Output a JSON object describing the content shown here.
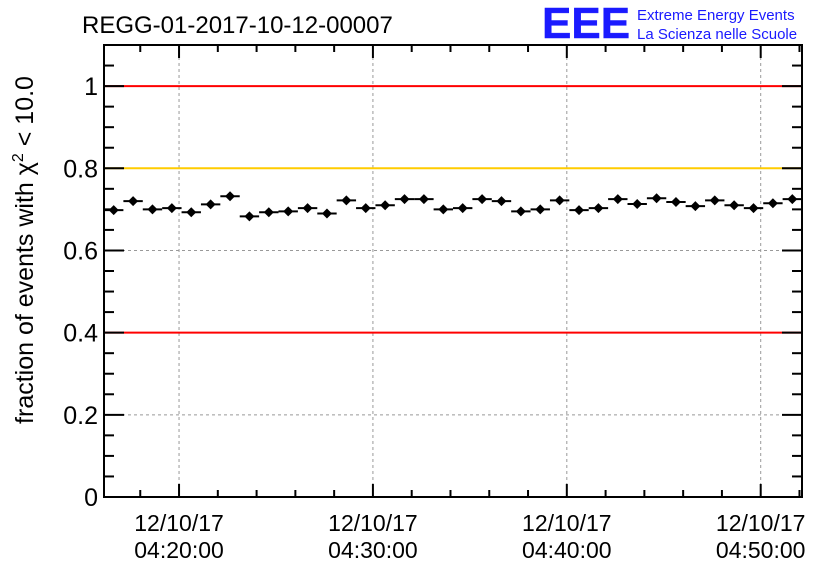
{
  "chart_data": {
    "type": "scatter",
    "title": "REGG-01-2017-10-12-00007",
    "logo": {
      "text": "EEE",
      "line1": "Extreme Energy Events",
      "line2": "La Scienza nelle Scuole"
    },
    "ylabel": "fraction of events with χ² < 10.0",
    "ylabel_parts": {
      "pre": "fraction of events with ",
      "sym": "χ",
      "sup": "2",
      "post": " < 10.0"
    },
    "xlabel": "",
    "x_units": "minutes after 04:00:00 on 12/10/17",
    "xlim": [
      16.13,
      52.13
    ],
    "ylim": [
      0,
      1.1
    ],
    "yticks": [
      0,
      0.2,
      0.4,
      0.6,
      0.8,
      1
    ],
    "ytick_labels": [
      "0",
      "0.2",
      "0.4",
      "0.6",
      "0.8",
      "1"
    ],
    "xticks": [
      20,
      30,
      40,
      50
    ],
    "xtick_labels": [
      [
        "12/10/17",
        "04:20:00"
      ],
      [
        "12/10/17",
        "04:30:00"
      ],
      [
        "12/10/17",
        "04:40:00"
      ],
      [
        "12/10/17",
        "04:50:00"
      ]
    ],
    "grid": true,
    "reference_lines": [
      {
        "y": 1.0,
        "color": "#ff0000"
      },
      {
        "y": 0.8,
        "color": "#ffcc00"
      },
      {
        "y": 0.4,
        "color": "#ff0000"
      }
    ],
    "bin_width": 1,
    "x_start": 16.63,
    "values": [
      0.698,
      0.72,
      0.7,
      0.703,
      0.693,
      0.712,
      0.732,
      0.683,
      0.693,
      0.695,
      0.703,
      0.69,
      0.722,
      0.703,
      0.71,
      0.725,
      0.725,
      0.7,
      0.703,
      0.725,
      0.72,
      0.695,
      0.7,
      0.722,
      0.698,
      0.703,
      0.725,
      0.713,
      0.727,
      0.718,
      0.708,
      0.722,
      0.71,
      0.703,
      0.715,
      0.725
    ],
    "errors": 0.006
  }
}
